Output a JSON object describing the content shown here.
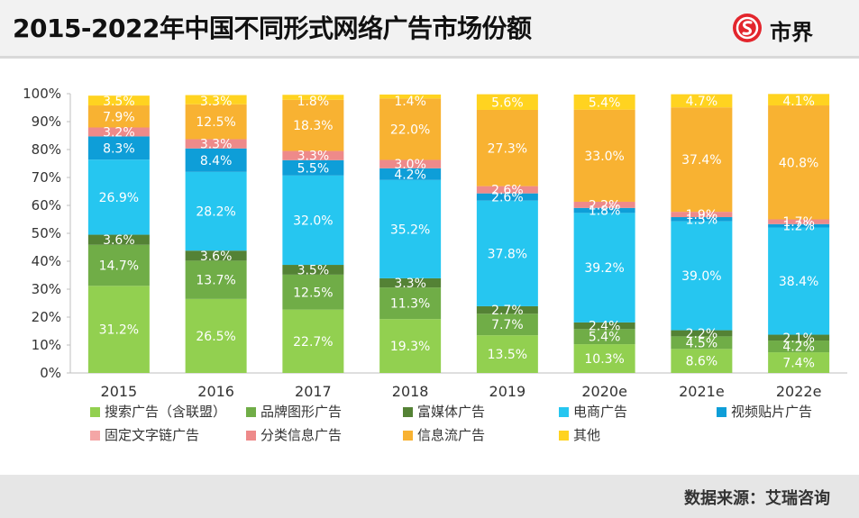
{
  "title": "2015-2022年中国不同形式网络广告市场份额",
  "brand": {
    "name": "市界",
    "icon": "brand-logo-icon",
    "color": "#e3262d"
  },
  "source": "数据来源：艾瑞咨询",
  "chart_data": {
    "type": "bar",
    "stacked": true,
    "categories": [
      "2015",
      "2016",
      "2017",
      "2018",
      "2019",
      "2020e",
      "2021e",
      "2022e"
    ],
    "ylim": [
      0,
      100
    ],
    "yticks": [
      "0%",
      "10%",
      "20%",
      "30%",
      "40%",
      "50%",
      "60%",
      "70%",
      "80%",
      "90%",
      "100%"
    ],
    "grid": false,
    "legend_position": "bottom",
    "series": [
      {
        "name": "搜索广告（含联盟）",
        "color": "#92d050",
        "values": [
          31.2,
          26.5,
          22.7,
          19.3,
          13.5,
          10.3,
          8.6,
          7.4
        ]
      },
      {
        "name": "品牌图形广告",
        "color": "#70ad47",
        "values": [
          14.7,
          13.7,
          12.5,
          11.3,
          7.7,
          5.4,
          4.5,
          4.2
        ]
      },
      {
        "name": "富媒体广告",
        "color": "#548235",
        "values": [
          3.6,
          3.6,
          3.5,
          3.3,
          2.7,
          2.4,
          2.2,
          2.1
        ]
      },
      {
        "name": "电商广告",
        "color": "#26c6f0",
        "values": [
          26.9,
          28.2,
          32.0,
          35.2,
          37.8,
          39.2,
          39.0,
          38.4
        ]
      },
      {
        "name": "视频贴片广告",
        "color": "#0e9ed8",
        "values": [
          8.3,
          8.4,
          5.5,
          4.2,
          2.6,
          1.8,
          1.5,
          1.2
        ]
      },
      {
        "name": "固定文字链广告",
        "color": "#f4a6a6",
        "values": [
          0,
          0,
          0,
          0,
          0,
          0,
          0,
          0
        ]
      },
      {
        "name": "分类信息广告",
        "color": "#ee8a8a",
        "values": [
          3.2,
          3.3,
          3.3,
          3.0,
          2.6,
          2.2,
          1.9,
          1.7
        ]
      },
      {
        "name": "信息流广告",
        "color": "#f8b232",
        "values": [
          7.9,
          12.5,
          18.3,
          22.0,
          27.3,
          33.0,
          37.4,
          40.8
        ]
      },
      {
        "name": "其他",
        "color": "#ffd320",
        "values": [
          3.5,
          3.3,
          1.8,
          1.4,
          5.6,
          5.4,
          4.7,
          4.1
        ]
      }
    ],
    "data_labels": [
      [
        "31.2%",
        "14.7%",
        "3.6%",
        "26.9%",
        "8.3%",
        "",
        "3.2%",
        "7.9%",
        "3.5%"
      ],
      [
        "26.5%",
        "13.7%",
        "3.6%",
        "28.2%",
        "8.4%",
        "",
        "3.3%",
        "12.5%",
        "3.3%"
      ],
      [
        "22.7%",
        "12.5%",
        "3.5%",
        "32.0%",
        "5.5%",
        "",
        "3.3%",
        "18.3%",
        "1.8%"
      ],
      [
        "19.3%",
        "11.3%",
        "3.3%",
        "35.2%",
        "4.2%",
        "",
        "3.0%",
        "22.0%",
        "1.4%"
      ],
      [
        "13.5%",
        "7.7%",
        "2.7%",
        "37.8%",
        "2.6%",
        "",
        "2.6%",
        "27.3%",
        "5.6%"
      ],
      [
        "10.3%",
        "5.4%",
        "2.4%",
        "39.2%",
        "1.8%",
        "",
        "2.2%",
        "33.0%",
        "5.4%"
      ],
      [
        "8.6%",
        "4.5%",
        "2.2%",
        "39.0%",
        "1.5%",
        "",
        "1.9%",
        "37.4%",
        "4.7%"
      ],
      [
        "7.4%",
        "4.2%",
        "2.1%",
        "38.4%",
        "1.2%",
        "",
        "1.7%",
        "40.8%",
        "4.1%"
      ]
    ]
  }
}
